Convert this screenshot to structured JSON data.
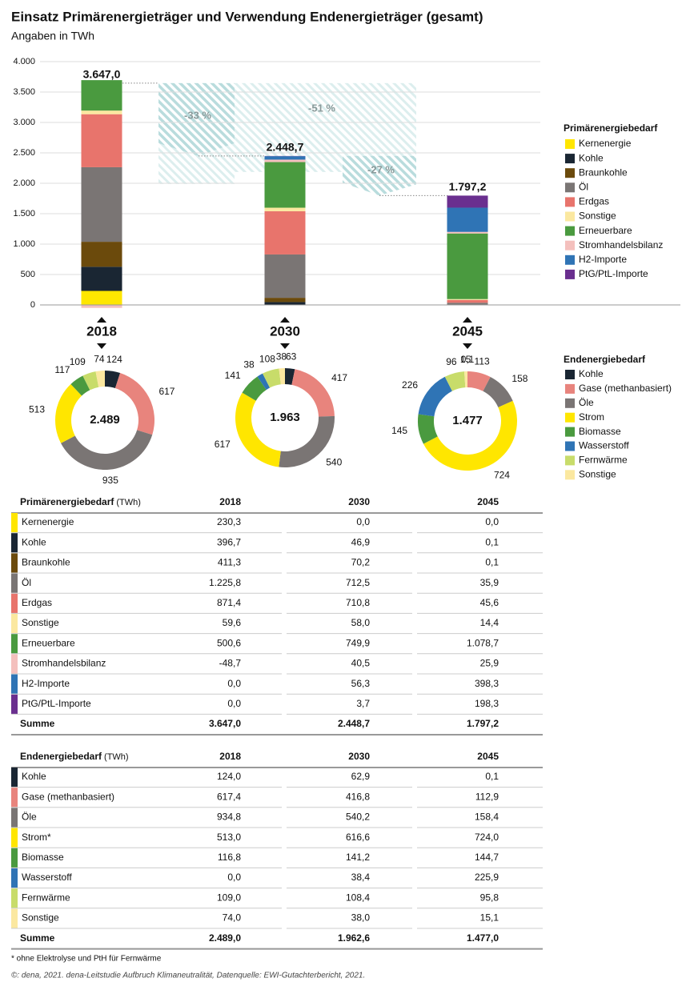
{
  "title": "Einsatz Primärenergieträger und Verwendung Endenergieträger (gesamt)",
  "subtitle": "Angaben in TWh",
  "chart_data": [
    {
      "type": "bar",
      "stacked": true,
      "categories": [
        "2018",
        "2030",
        "2045"
      ],
      "series": [
        {
          "name": "Kernenergie",
          "color": "#ffe600",
          "values": [
            230.3,
            0.0,
            0.0
          ]
        },
        {
          "name": "Kohle",
          "color": "#1a2633",
          "values": [
            396.7,
            46.9,
            0.1
          ]
        },
        {
          "name": "Braunkohle",
          "color": "#6b4a0c",
          "values": [
            411.3,
            70.2,
            0.1
          ]
        },
        {
          "name": "Öl",
          "color": "#7a7574",
          "values": [
            1225.8,
            712.5,
            35.9
          ]
        },
        {
          "name": "Erdgas",
          "color": "#e8746c",
          "values": [
            871.4,
            710.8,
            45.6
          ]
        },
        {
          "name": "Sonstige",
          "color": "#fbe8a0",
          "values": [
            59.6,
            58.0,
            14.4
          ]
        },
        {
          "name": "Erneuerbare",
          "color": "#4a9a3f",
          "values": [
            500.6,
            749.9,
            1078.7
          ]
        },
        {
          "name": "Stromhandelsbilanz",
          "color": "#f4c0bd",
          "values": [
            -48.7,
            40.5,
            25.9
          ]
        },
        {
          "name": "H2-Importe",
          "color": "#2f74b5",
          "values": [
            0.0,
            56.3,
            398.3
          ]
        },
        {
          "name": "PtG/PtL-Importe",
          "color": "#6a2f8f",
          "values": [
            0.0,
            3.7,
            198.3
          ]
        }
      ],
      "totals": [
        3647.0,
        2448.7,
        1797.2
      ],
      "total_labels": [
        "3.647,0",
        "2.448,7",
        "1.797,2"
      ],
      "ylim": [
        0,
        4000
      ],
      "yticks": [
        0,
        500,
        {
          "value": 1000,
          "label": "1.000"
        },
        {
          "value": 1500,
          "label": "1.500"
        },
        {
          "value": 2000,
          "label": "2.000"
        },
        {
          "value": 2500,
          "label": "2.500"
        },
        {
          "value": 3000,
          "label": "3.000"
        },
        {
          "value": 3500,
          "label": "3.500"
        },
        {
          "value": 4000,
          "label": "4.000"
        }
      ],
      "grid": true,
      "annotations": [
        "-33 %",
        "-51 %",
        "-27 %"
      ],
      "legend_title": "Primärenergiebedarf",
      "legend": "right"
    },
    {
      "type": "donut",
      "legend_title": "Endenergiebedarf",
      "legend": "right",
      "categories": [
        "Kohle",
        "Gase (methanbasiert)",
        "Öle",
        "Strom",
        "Biomasse",
        "Wasserstoff",
        "Fernwärme",
        "Sonstige"
      ],
      "colors": [
        "#1a2633",
        "#e8847d",
        "#7a7574",
        "#ffe600",
        "#4a9a3f",
        "#2f74b5",
        "#c8dc6a",
        "#fbe8a0"
      ],
      "series": [
        {
          "values": [
            124,
            617,
            935,
            513,
            117,
            0,
            109,
            74
          ],
          "center_label": "2.489"
        },
        {
          "values": [
            63,
            417,
            540,
            617,
            141,
            38,
            108,
            38
          ],
          "center_label": "1.963"
        },
        {
          "values": [
            0.1,
            113,
            158,
            724,
            145,
            226,
            96,
            15
          ],
          "value_labels": [
            "0,1",
            "113",
            "158",
            "724",
            "145",
            "226",
            "96",
            "15"
          ],
          "center_label": "1.477"
        }
      ]
    }
  ],
  "tables": [
    {
      "title": "Primärenergiebedarf",
      "unit": "(TWh)",
      "columns": [
        "2018",
        "2030",
        "2045"
      ],
      "rows": [
        [
          "Kernenergie",
          "230,3",
          "0,0",
          "0,0"
        ],
        [
          "Kohle",
          "396,7",
          "46,9",
          "0,1"
        ],
        [
          "Braunkohle",
          "411,3",
          "70,2",
          "0,1"
        ],
        [
          "Öl",
          "1.225,8",
          "712,5",
          "35,9"
        ],
        [
          "Erdgas",
          "871,4",
          "710,8",
          "45,6"
        ],
        [
          "Sonstige",
          "59,6",
          "58,0",
          "14,4"
        ],
        [
          "Erneuerbare",
          "500,6",
          "749,9",
          "1.078,7"
        ],
        [
          "Stromhandelsbilanz",
          "-48,7",
          "40,5",
          "25,9"
        ],
        [
          "H2-Importe",
          "0,0",
          "56,3",
          "398,3"
        ],
        [
          "PtG/PtL-Importe",
          "0,0",
          "3,7",
          "198,3"
        ]
      ],
      "total": [
        "Summe",
        "3.647,0",
        "2.448,7",
        "1.797,2"
      ]
    },
    {
      "title": "Endenergiebedarf",
      "unit": "(TWh)",
      "columns": [
        "2018",
        "2030",
        "2045"
      ],
      "rows": [
        [
          "Kohle",
          "124,0",
          "62,9",
          "0,1"
        ],
        [
          "Gase (methanbasiert)",
          "617,4",
          "416,8",
          "112,9"
        ],
        [
          "Öle",
          "934,8",
          "540,2",
          "158,4"
        ],
        [
          "Strom*",
          "513,0",
          "616,6",
          "724,0"
        ],
        [
          "Biomasse",
          "116,8",
          "141,2",
          "144,7"
        ],
        [
          "Wasserstoff",
          "0,0",
          "38,4",
          "225,9"
        ],
        [
          "Fernwärme",
          "109,0",
          "108,4",
          "95,8"
        ],
        [
          "Sonstige",
          "74,0",
          "38,0",
          "15,1"
        ]
      ],
      "total": [
        "Summe",
        "2.489,0",
        "1.962,6",
        "1.477,0"
      ]
    }
  ],
  "footnote": "* ohne Elektrolyse und PtH für Fernwärme",
  "source": "©: dena, 2021. dena-Leitstudie Aufbruch Klimaneutralität, Datenquelle: EWI-Gutachterbericht, 2021."
}
